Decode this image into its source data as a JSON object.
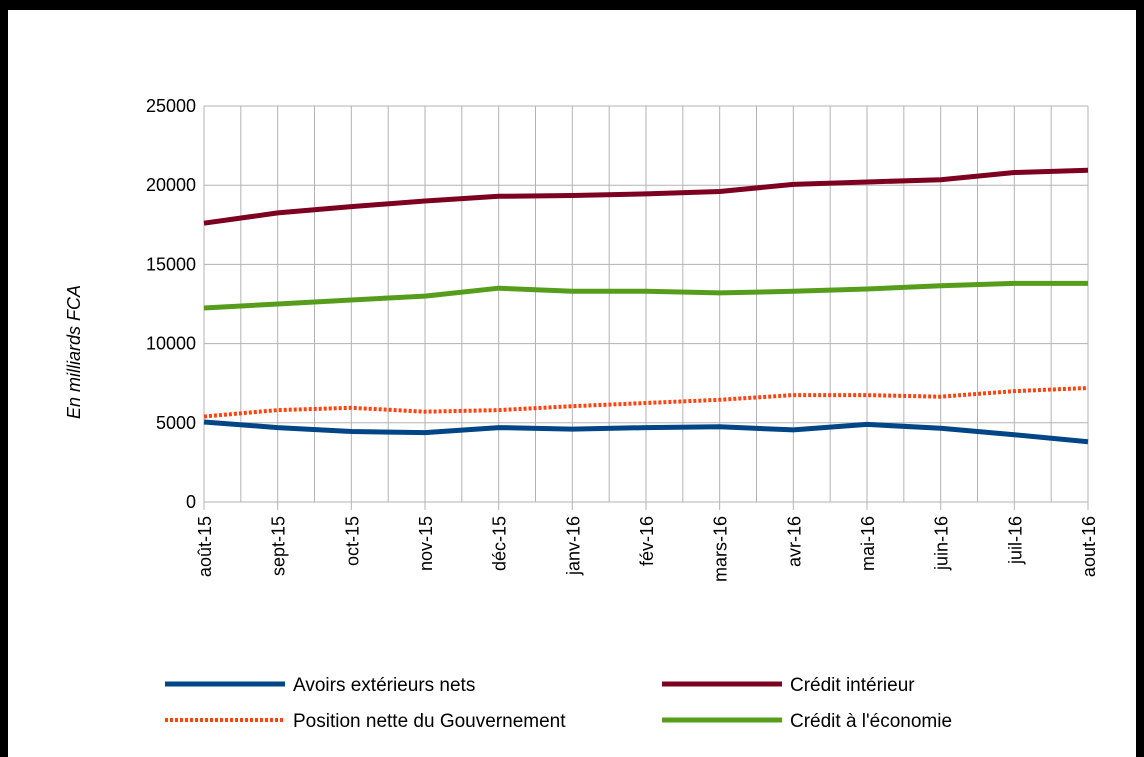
{
  "chart_data": {
    "type": "line",
    "title": "",
    "xlabel": "",
    "ylabel": "En milliards FCA",
    "ylim": [
      0,
      25000
    ],
    "yticks": [
      0,
      5000,
      10000,
      15000,
      20000,
      25000
    ],
    "grid": true,
    "legend_position": "bottom",
    "categories": [
      "août-15",
      "sept-15",
      "oct-15",
      "nov-15",
      "déc-15",
      "janv-16",
      "fév-16",
      "mars-16",
      "avr-16",
      "mai-16",
      "juin-16",
      "juil-16",
      "aout-16"
    ],
    "series": [
      {
        "name": "Avoirs extérieurs nets",
        "color": "#004586",
        "style": "solid",
        "values": [
          5050,
          4700,
          4450,
          4380,
          4700,
          4600,
          4700,
          4750,
          4550,
          4900,
          4650,
          4250,
          3800
        ]
      },
      {
        "name": "Crédit intérieur",
        "color": "#7e0021",
        "style": "solid",
        "values": [
          17600,
          18250,
          18650,
          19000,
          19300,
          19350,
          19450,
          19600,
          20050,
          20200,
          20350,
          20800,
          20950
        ]
      },
      {
        "name": "Position nette du Gouvernement",
        "color": "#ff420e",
        "style": "dotted",
        "values": [
          5400,
          5800,
          5950,
          5700,
          5800,
          6050,
          6250,
          6450,
          6750,
          6750,
          6650,
          7000,
          7200
        ]
      },
      {
        "name": "Crédit à l'économie",
        "color": "#579d1c",
        "style": "solid",
        "values": [
          12250,
          12500,
          12750,
          13000,
          13500,
          13300,
          13300,
          13200,
          13300,
          13450,
          13650,
          13800,
          13800
        ]
      }
    ]
  }
}
